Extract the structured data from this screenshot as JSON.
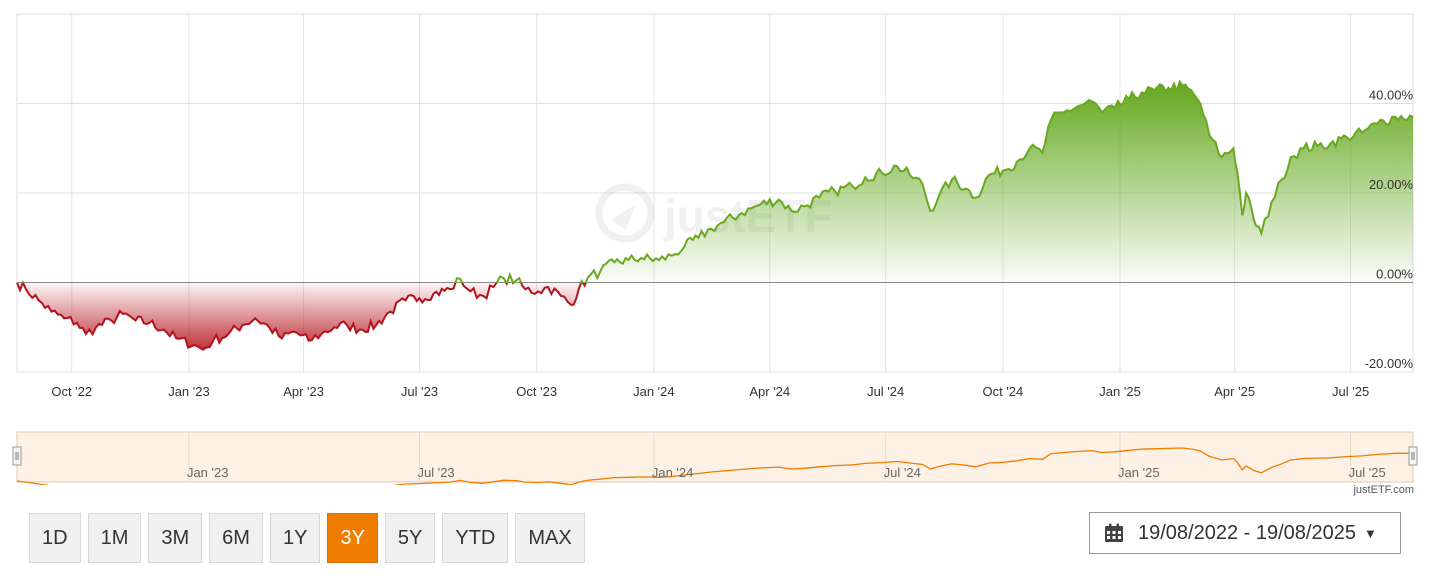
{
  "chart_data": {
    "type": "area",
    "title": "",
    "xlabel": "",
    "ylabel": "",
    "y_unit": "%",
    "ylim": [
      -20,
      60
    ],
    "y_ticks": [
      {
        "value": 40,
        "label": "40.00%"
      },
      {
        "value": 20,
        "label": "20.00%"
      },
      {
        "value": 0,
        "label": "0.00%"
      },
      {
        "value": -20,
        "label": "-20.00%"
      }
    ],
    "x_range": [
      "2022-08-19",
      "2025-08-19"
    ],
    "x_ticks": [
      {
        "date": "2022-10-01",
        "label": "Oct '22"
      },
      {
        "date": "2023-01-01",
        "label": "Jan '23"
      },
      {
        "date": "2023-04-01",
        "label": "Apr '23"
      },
      {
        "date": "2023-07-01",
        "label": "Jul '23"
      },
      {
        "date": "2023-10-01",
        "label": "Oct '23"
      },
      {
        "date": "2024-01-01",
        "label": "Jan '24"
      },
      {
        "date": "2024-04-01",
        "label": "Apr '24"
      },
      {
        "date": "2024-07-01",
        "label": "Jul '24"
      },
      {
        "date": "2024-10-01",
        "label": "Oct '24"
      },
      {
        "date": "2025-01-01",
        "label": "Jan '25"
      },
      {
        "date": "2025-04-01",
        "label": "Apr '25"
      },
      {
        "date": "2025-07-01",
        "label": "Jul '25"
      }
    ],
    "grid": true,
    "positive_color": "#6aa820",
    "negative_color": "#b5121b",
    "series": [
      {
        "points": [
          [
            "2022-08-19",
            0
          ],
          [
            "2022-08-26",
            -1.5
          ],
          [
            "2022-09-05",
            -4
          ],
          [
            "2022-09-15",
            -6.5
          ],
          [
            "2022-09-25",
            -8
          ],
          [
            "2022-10-05",
            -9
          ],
          [
            "2022-10-12",
            -11.5
          ],
          [
            "2022-10-20",
            -10
          ],
          [
            "2022-11-01",
            -8.5
          ],
          [
            "2022-11-10",
            -7
          ],
          [
            "2022-11-20",
            -8.5
          ],
          [
            "2022-12-01",
            -9
          ],
          [
            "2022-12-12",
            -10.5
          ],
          [
            "2022-12-22",
            -12.5
          ],
          [
            "2023-01-05",
            -14
          ],
          [
            "2023-01-12",
            -15
          ],
          [
            "2023-01-20",
            -13
          ],
          [
            "2023-02-01",
            -11.5
          ],
          [
            "2023-02-12",
            -9.5
          ],
          [
            "2023-02-22",
            -8
          ],
          [
            "2023-03-05",
            -10
          ],
          [
            "2023-03-15",
            -12.5
          ],
          [
            "2023-03-25",
            -11
          ],
          [
            "2023-04-05",
            -13
          ],
          [
            "2023-04-15",
            -11.5
          ],
          [
            "2023-04-25",
            -10
          ],
          [
            "2023-05-05",
            -9.5
          ],
          [
            "2023-05-15",
            -10.5
          ],
          [
            "2023-05-28",
            -9.5
          ],
          [
            "2023-06-08",
            -6.5
          ],
          [
            "2023-06-20",
            -4
          ],
          [
            "2023-07-01",
            -3.5
          ],
          [
            "2023-07-12",
            -2.5
          ],
          [
            "2023-07-25",
            -1.5
          ],
          [
            "2023-08-02",
            0.8
          ],
          [
            "2023-08-10",
            -2
          ],
          [
            "2023-08-20",
            -3
          ],
          [
            "2023-08-28",
            -1
          ],
          [
            "2023-09-05",
            1
          ],
          [
            "2023-09-15",
            0.5
          ],
          [
            "2023-09-22",
            -1.5
          ],
          [
            "2023-10-02",
            -2
          ],
          [
            "2023-10-10",
            -1
          ],
          [
            "2023-10-20",
            -3
          ],
          [
            "2023-10-28",
            -5
          ],
          [
            "2023-11-03",
            -1.5
          ],
          [
            "2023-11-10",
            1
          ],
          [
            "2023-11-20",
            2.5
          ],
          [
            "2023-12-01",
            4.5
          ],
          [
            "2023-12-12",
            5
          ],
          [
            "2023-12-22",
            5.5
          ],
          [
            "2024-01-05",
            5
          ],
          [
            "2024-01-15",
            6
          ],
          [
            "2024-01-25",
            8
          ],
          [
            "2024-02-05",
            10
          ],
          [
            "2024-02-15",
            12
          ],
          [
            "2024-02-25",
            13.5
          ],
          [
            "2024-03-10",
            15.5
          ],
          [
            "2024-03-25",
            17.5
          ],
          [
            "2024-04-08",
            18.5
          ],
          [
            "2024-04-18",
            16
          ],
          [
            "2024-04-28",
            17
          ],
          [
            "2024-05-10",
            19
          ],
          [
            "2024-05-22",
            20.5
          ],
          [
            "2024-06-05",
            21.5
          ],
          [
            "2024-06-15",
            23.5
          ],
          [
            "2024-06-28",
            24.5
          ],
          [
            "2024-07-10",
            26
          ],
          [
            "2024-07-20",
            24
          ],
          [
            "2024-07-30",
            22
          ],
          [
            "2024-08-05",
            16
          ],
          [
            "2024-08-12",
            19.5
          ],
          [
            "2024-08-22",
            23
          ],
          [
            "2024-09-02",
            21
          ],
          [
            "2024-09-10",
            19
          ],
          [
            "2024-09-20",
            24
          ],
          [
            "2024-10-01",
            25
          ],
          [
            "2024-10-12",
            27
          ],
          [
            "2024-10-22",
            30
          ],
          [
            "2024-11-01",
            29
          ],
          [
            "2024-11-08",
            36.5
          ],
          [
            "2024-11-18",
            38
          ],
          [
            "2024-11-30",
            39.5
          ],
          [
            "2024-12-10",
            40.5
          ],
          [
            "2024-12-18",
            38
          ],
          [
            "2024-12-28",
            39
          ],
          [
            "2025-01-08",
            41
          ],
          [
            "2025-01-18",
            42.5
          ],
          [
            "2025-01-28",
            43
          ],
          [
            "2025-02-08",
            43.5
          ],
          [
            "2025-02-19",
            44
          ],
          [
            "2025-02-28",
            42
          ],
          [
            "2025-03-05",
            40
          ],
          [
            "2025-03-12",
            33
          ],
          [
            "2025-03-22",
            28
          ],
          [
            "2025-03-31",
            30
          ],
          [
            "2025-04-03",
            25
          ],
          [
            "2025-04-07",
            15
          ],
          [
            "2025-04-10",
            20
          ],
          [
            "2025-04-16",
            14
          ],
          [
            "2025-04-22",
            11
          ],
          [
            "2025-04-30",
            18
          ],
          [
            "2025-05-08",
            23
          ],
          [
            "2025-05-15",
            28
          ],
          [
            "2025-05-25",
            30
          ],
          [
            "2025-06-05",
            30.5
          ],
          [
            "2025-06-15",
            31
          ],
          [
            "2025-06-28",
            32.5
          ],
          [
            "2025-07-10",
            33.5
          ],
          [
            "2025-07-22",
            35.5
          ],
          [
            "2025-08-05",
            37
          ],
          [
            "2025-08-19",
            37
          ]
        ]
      }
    ]
  },
  "navigator": {
    "x_ticks": [
      {
        "date": "2023-01-01",
        "label": "Jan '23"
      },
      {
        "date": "2023-07-01",
        "label": "Jul '23"
      },
      {
        "date": "2024-01-01",
        "label": "Jan '24"
      },
      {
        "date": "2024-07-01",
        "label": "Jul '24"
      },
      {
        "date": "2025-01-01",
        "label": "Jan '25"
      },
      {
        "date": "2025-07-01",
        "label": "Jul '25"
      }
    ],
    "line_color": "#f07d00",
    "fill_color": "#fdf0e4"
  },
  "credit": "justETF.com",
  "range_buttons": [
    {
      "label": "1D",
      "active": false
    },
    {
      "label": "1M",
      "active": false
    },
    {
      "label": "3M",
      "active": false
    },
    {
      "label": "6M",
      "active": false
    },
    {
      "label": "1Y",
      "active": false
    },
    {
      "label": "3Y",
      "active": true
    },
    {
      "label": "5Y",
      "active": false
    },
    {
      "label": "YTD",
      "active": false
    },
    {
      "label": "MAX",
      "active": false
    }
  ],
  "date_range": {
    "label": "19/08/2022 - 19/08/2025",
    "icon": "calendar-icon",
    "caret_icon": "caret-down-icon"
  }
}
